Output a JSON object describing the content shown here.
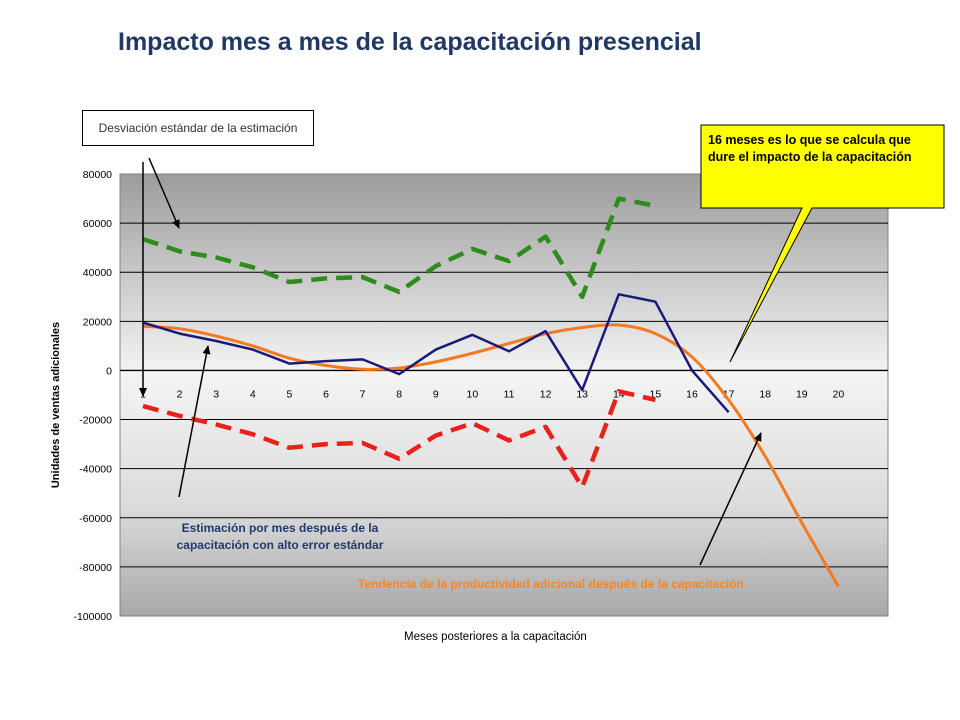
{
  "title": "Impacto mes a mes de la capacitación presencial",
  "annotations": {
    "std_box": "Desviación estándar de la estimación",
    "estimate_note": "Estimación por mes después de la capacitación con alto error estándar",
    "trend_note": "Tendencia de la productividad adicional después de la capacitación",
    "bubble": "16 meses es lo que se calcula que dure el impacto de la capacitación"
  },
  "colors": {
    "estimate": "#1A1A7A",
    "upper": "#2E8B1E",
    "lower": "#E8211A",
    "trend": "#F47A20",
    "bubble_fill": "#FFFF00",
    "title": "#1F3864"
  },
  "chart_data": {
    "type": "line",
    "title": "Impacto mes a mes de la capacitación presencial",
    "xlabel": "Meses posteriores  a la capacitación",
    "ylabel": "Unidades de ventas adicionales",
    "ylim": [
      -100000,
      80000
    ],
    "yticks": [
      80000,
      60000,
      40000,
      20000,
      0,
      -20000,
      -40000,
      -60000,
      -80000,
      -100000
    ],
    "categories": [
      "1",
      "2",
      "3",
      "4",
      "5",
      "6",
      "7",
      "8",
      "9",
      "10",
      "11",
      "12",
      "13",
      "14",
      "15",
      "16",
      "17",
      "18",
      "19",
      "20"
    ],
    "grid": true,
    "series": [
      {
        "key": "estimate",
        "style": "solid",
        "values": [
          19500,
          15000,
          12000,
          8500,
          2800,
          3800,
          4500,
          -1500,
          8500,
          14500,
          7800,
          16000,
          -8000,
          31000,
          28000,
          0,
          -17000,
          null,
          null,
          null
        ]
      },
      {
        "key": "upper",
        "style": "dashed",
        "values": [
          53500,
          48500,
          46000,
          42000,
          36000,
          37500,
          38000,
          32000,
          42500,
          49500,
          44500,
          54500,
          30000,
          70000,
          67000,
          null,
          null,
          null,
          null,
          null
        ]
      },
      {
        "key": "lower",
        "style": "dashed",
        "values": [
          -14500,
          -18500,
          -22000,
          -26000,
          -31500,
          -30000,
          -29500,
          -36000,
          -26500,
          -21500,
          -28500,
          -23000,
          -47500,
          -8500,
          -12000,
          null,
          null,
          null,
          null,
          null
        ]
      },
      {
        "key": "trend",
        "style": "solid",
        "values": [
          18000,
          17000,
          14000,
          10000,
          5000,
          2000,
          500,
          1000,
          3500,
          7000,
          11000,
          15000,
          17500,
          18500,
          15000,
          5500,
          -12000,
          -35000,
          -62000,
          -88000
        ]
      }
    ]
  }
}
